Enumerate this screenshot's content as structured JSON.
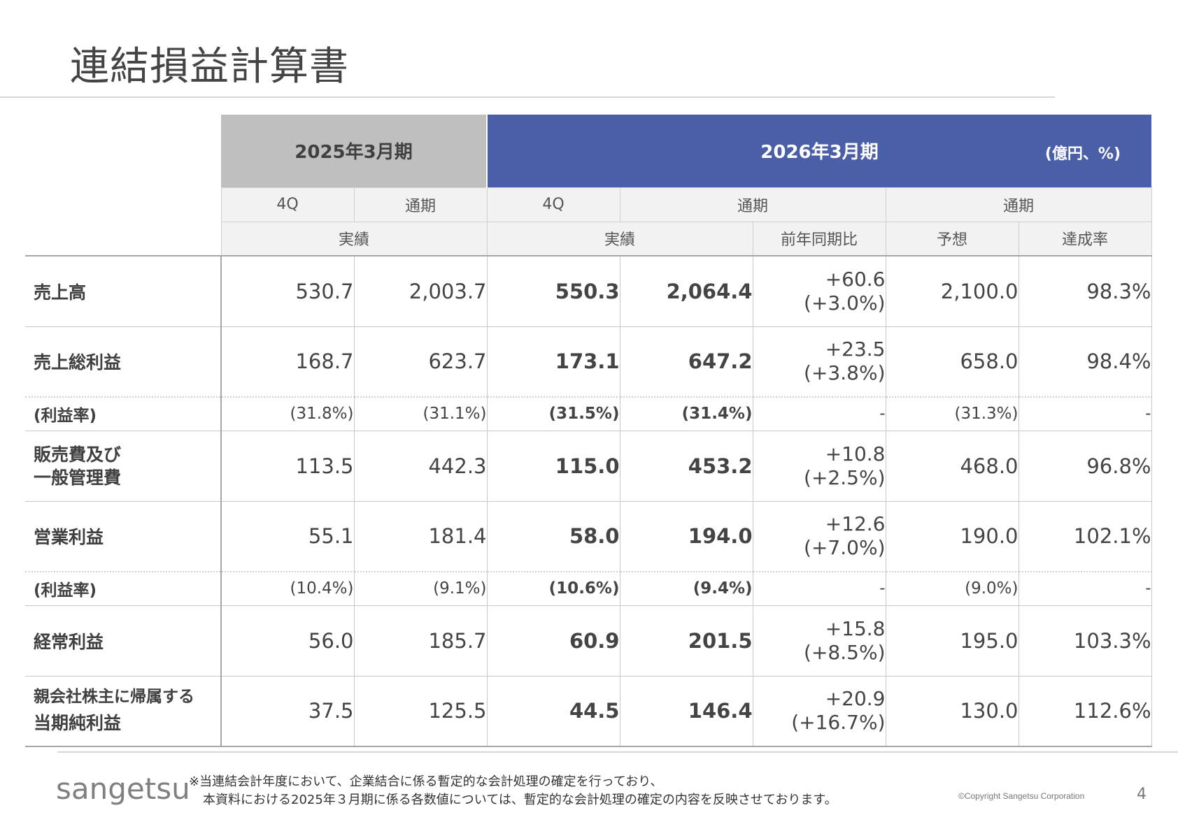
{
  "title": "連結損益計算書",
  "table": {
    "header": {
      "fy2025": "2025年3月期",
      "fy2026": "2026年3月期",
      "unit": "(億円、%)",
      "sub1": [
        "4Q",
        "通期",
        "4Q",
        "通期",
        "通期"
      ],
      "sub2": [
        "実績",
        "実績",
        "前年同期比",
        "予想",
        "達成率"
      ]
    },
    "rows": [
      {
        "label": "売上高",
        "v": [
          "530.7",
          "2,003.7",
          "550.3",
          "2,064.4"
        ],
        "yoy1": "+60.6",
        "yoy2": "(+3.0%)",
        "forecast": "2,100.0",
        "achieve": "98.3%"
      },
      {
        "label": "売上総利益",
        "v": [
          "168.7",
          "623.7",
          "173.1",
          "647.2"
        ],
        "yoy1": "+23.5",
        "yoy2": "(+3.8%)",
        "forecast": "658.0",
        "achieve": "98.4%"
      },
      {
        "label": "(利益率)",
        "v": [
          "(31.8%)",
          "(31.1%)",
          "(31.5%)",
          "(31.4%)"
        ],
        "yoy": "-",
        "forecast": "(31.3%)",
        "achieve": "-"
      },
      {
        "label1": "販売費及び",
        "label2": "一般管理費",
        "v": [
          "113.5",
          "442.3",
          "115.0",
          "453.2"
        ],
        "yoy1": "+10.8",
        "yoy2": "(+2.5%)",
        "forecast": "468.0",
        "achieve": "96.8%"
      },
      {
        "label": "営業利益",
        "v": [
          "55.1",
          "181.4",
          "58.0",
          "194.0"
        ],
        "yoy1": "+12.6",
        "yoy2": "(+7.0%)",
        "forecast": "190.0",
        "achieve": "102.1%"
      },
      {
        "label": "(利益率)",
        "v": [
          "(10.4%)",
          "(9.1%)",
          "(10.6%)",
          "(9.4%)"
        ],
        "yoy": "-",
        "forecast": "(9.0%)",
        "achieve": "-"
      },
      {
        "label": "経常利益",
        "v": [
          "56.0",
          "185.7",
          "60.9",
          "201.5"
        ],
        "yoy1": "+15.8",
        "yoy2": "(+8.5%)",
        "forecast": "195.0",
        "achieve": "103.3%"
      },
      {
        "label1": "親会社株主に帰属する",
        "label2": "当期純利益",
        "v": [
          "37.5",
          "125.5",
          "44.5",
          "146.4"
        ],
        "yoy1": "+20.9",
        "yoy2": "(+16.7%)",
        "forecast": "130.0",
        "achieve": "112.6%"
      }
    ]
  },
  "footer": {
    "logo": "sangetsu",
    "note1": "※当連結会計年度において、企業結合に係る暫定的な会計処理の確定を行っており、",
    "note2": "本資料における2025年３月期に係る各数値については、暫定的な会計処理の確定の内容を反映させております。",
    "copyright": "©Copyright Sangetsu Corporation",
    "page": "4"
  }
}
